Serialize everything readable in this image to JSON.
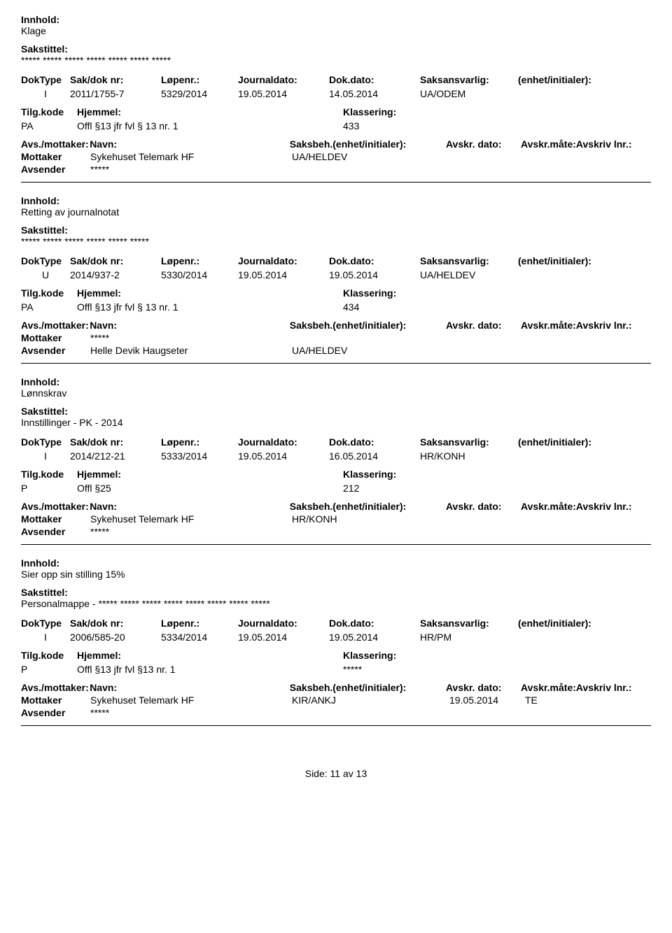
{
  "labels": {
    "innhold": "Innhold:",
    "sakstittel": "Sakstittel:",
    "doktype": "DokType",
    "sakdok": "Sak/dok nr:",
    "lopenr": "Løpenr.:",
    "journaldato": "Journaldato:",
    "dokdato": "Dok.dato:",
    "saksansvarlig": "Saksansvarlig:",
    "enhet": "(enhet/initialer):",
    "tilgkode": "Tilg.kode",
    "hjemmel": "Hjemmel:",
    "klassering": "Klassering:",
    "avsmottaker": "Avs./mottaker:",
    "navn": "Navn:",
    "saksbeh": "Saksbeh.(enhet/initialer):",
    "avskrdato": "Avskr. dato:",
    "avskrmate": "Avskr.måte:",
    "avskrivlnr": "Avskriv lnr.:",
    "mottaker": "Mottaker",
    "avsender": "Avsender"
  },
  "footer": {
    "side": "Side:",
    "page": "11",
    "av": "av",
    "total": "13"
  },
  "records": [
    {
      "innhold": "Klage",
      "sakstittel": "***** ***** ***** ***** ***** ***** *****",
      "doktype": "I",
      "sakdok": "2011/1755-7",
      "lopenr": "5329/2014",
      "journaldato": "19.05.2014",
      "dokdato": "14.05.2014",
      "saksansvarlig": "UA/ODEM",
      "enhet": "",
      "tilgkode": "PA",
      "hjemmel": "Offl §13 jfr fvl § 13 nr. 1",
      "klassering": "433",
      "parties": [
        {
          "role": "Mottaker",
          "navn": "Sykehuset Telemark HF",
          "saksbeh": "UA/HELDEV",
          "adate": "",
          "amate": "",
          "alnr": ""
        },
        {
          "role": "Avsender",
          "navn": "*****",
          "saksbeh": "",
          "adate": "",
          "amate": "",
          "alnr": ""
        }
      ]
    },
    {
      "innhold": "Retting av journalnotat",
      "sakstittel": "***** ***** ***** ***** ***** *****",
      "doktype": "U",
      "sakdok": "2014/937-2",
      "lopenr": "5330/2014",
      "journaldato": "19.05.2014",
      "dokdato": "19.05.2014",
      "saksansvarlig": "UA/HELDEV",
      "enhet": "",
      "tilgkode": "PA",
      "hjemmel": "Offl §13 jfr fvl § 13 nr. 1",
      "klassering": "434",
      "parties": [
        {
          "role": "Mottaker",
          "navn": "*****",
          "saksbeh": "",
          "adate": "",
          "amate": "",
          "alnr": ""
        },
        {
          "role": "Avsender",
          "navn": "Helle Devik Haugseter",
          "saksbeh": "UA/HELDEV",
          "adate": "",
          "amate": "",
          "alnr": ""
        }
      ]
    },
    {
      "innhold": "Lønnskrav",
      "sakstittel": "Innstillinger - PK - 2014",
      "doktype": "I",
      "sakdok": "2014/212-21",
      "lopenr": "5333/2014",
      "journaldato": "19.05.2014",
      "dokdato": "16.05.2014",
      "saksansvarlig": "HR/KONH",
      "enhet": "",
      "tilgkode": "P",
      "hjemmel": "Offl  §25",
      "klassering": "212",
      "parties": [
        {
          "role": "Mottaker",
          "navn": "Sykehuset Telemark HF",
          "saksbeh": "HR/KONH",
          "adate": "",
          "amate": "",
          "alnr": ""
        },
        {
          "role": "Avsender",
          "navn": "*****",
          "saksbeh": "",
          "adate": "",
          "amate": "",
          "alnr": ""
        }
      ]
    },
    {
      "innhold": "Sier opp sin stilling 15%",
      "sakstittel": "Personalmappe - ***** ***** ***** ***** ***** ***** ***** *****",
      "doktype": "I",
      "sakdok": "2006/585-20",
      "lopenr": "5334/2014",
      "journaldato": "19.05.2014",
      "dokdato": "19.05.2014",
      "saksansvarlig": "HR/PM",
      "enhet": "",
      "tilgkode": "P",
      "hjemmel": "Offl §13 jfr fvl §13 nr. 1",
      "klassering": "*****",
      "parties": [
        {
          "role": "Mottaker",
          "navn": "Sykehuset Telemark HF",
          "saksbeh": "KIR/ANKJ",
          "adate": "19.05.2014",
          "amate": "TE",
          "alnr": ""
        },
        {
          "role": "Avsender",
          "navn": "*****",
          "saksbeh": "",
          "adate": "",
          "amate": "",
          "alnr": ""
        }
      ]
    }
  ]
}
